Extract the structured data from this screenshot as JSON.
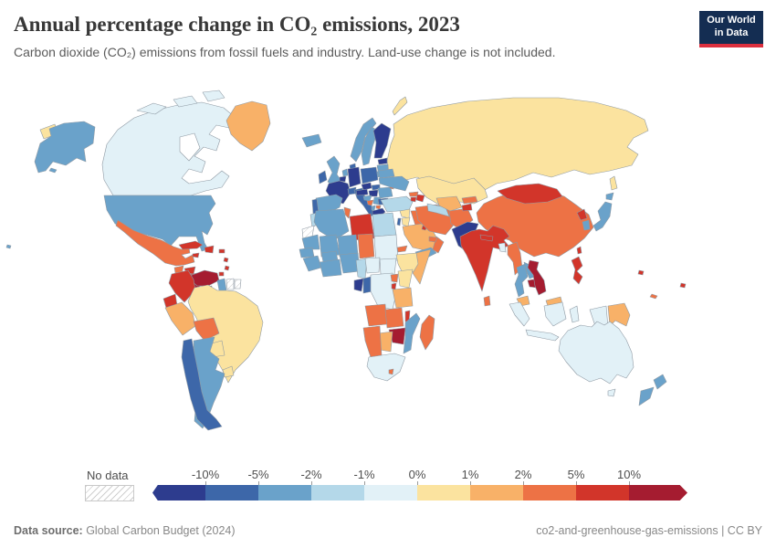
{
  "header": {
    "title": "Annual percentage change in CO₂ emissions, 2023",
    "subtitle": "Carbon dioxide (CO₂) emissions from fossil fuels and industry. Land-use change is not included.",
    "logo": {
      "line1": "Our World",
      "line2": "in Data"
    }
  },
  "legend": {
    "no_data_label": "No data",
    "ticks": [
      "-10%",
      "-5%",
      "-2%",
      "-1%",
      "0%",
      "1%",
      "2%",
      "5%",
      "10%"
    ]
  },
  "footer": {
    "source_label": "Data source:",
    "source_value": " Global Carbon Budget (2024)",
    "right_text": "co2-and-greenhouse-gas-emissions | CC BY"
  },
  "map": {
    "palette": [
      "#2d3c8e",
      "#3d67a9",
      "#6aa2ca",
      "#b4d8e9",
      "#e2f1f7",
      "#fbe39f",
      "#f8b168",
      "#ed7245",
      "#d2352a",
      "#a51c30"
    ],
    "border_color": "#8f9aa4",
    "countries": {
      "russia": 5,
      "kazakhstan": 5,
      "canada": 4,
      "greenland": 6,
      "usa": 2,
      "mexico": 7,
      "guatemala": 7,
      "honduras": 8,
      "nicaragua": 8,
      "costa-rica": 9,
      "panama": 9,
      "cuba": 8,
      "jamaica": 8,
      "hispaniola": 8,
      "puerto-rico": 8,
      "lesser-antilles": 8,
      "trinidad": 8,
      "venezuela": 9,
      "colombia": 8,
      "guyana": 2,
      "suriname": -1,
      "french-guiana": -1,
      "ecuador": 8,
      "peru": 6,
      "brazil": 5,
      "bolivia": 7,
      "paraguay": 5,
      "uruguay": 5,
      "argentina": 2,
      "chile": 1,
      "iceland": 2,
      "norway": 2,
      "sweden": 2,
      "finland": 0,
      "estonia": 0,
      "latvia": 2,
      "lithuania": 2,
      "denmark": 1,
      "united-kingdom": 2,
      "ireland": 1,
      "netherlands": 2,
      "belgium": 0,
      "germany": 0,
      "france": 0,
      "switzerland": 1,
      "spain": 2,
      "portugal": 1,
      "italy": 1,
      "poland": 1,
      "czechia": 0,
      "austria": 0,
      "slovakia": 1,
      "hungary": 0,
      "romania": 2,
      "moldova": 7,
      "ukraine": 2,
      "belarus": 2,
      "croatia": 2,
      "bosnia": 7,
      "serbia": 2,
      "albania": 2,
      "north-macedonia": 7,
      "bulgaria": 1,
      "greece": 0,
      "turkey": 3,
      "georgia": 7,
      "armenia": 8,
      "azerbaijan": 8,
      "syria": 5,
      "israel": 1,
      "jordan": 5,
      "iraq": 7,
      "saudi-arabia": 6,
      "yemen": 2,
      "oman": 7,
      "uae": 7,
      "kuwait": 8,
      "iran": 7,
      "afghanistan": 7,
      "turkmenistan": 3,
      "uzbekistan": 6,
      "kyrgyzstan": 7,
      "tajikistan": 8,
      "pakistan": 0,
      "india": 8,
      "nepal": 8,
      "bangladesh": 4,
      "sri-lanka": 7,
      "myanmar": 7,
      "thailand": 2,
      "laos": 2,
      "cambodia": 9,
      "vietnam": 9,
      "malaysia": 6,
      "philippines": 8,
      "indonesia": 4,
      "papua-new-guinea": 6,
      "solomon-islands": 8,
      "fiji": 8,
      "new-caledonia": 7,
      "china": 7,
      "mongolia": 8,
      "north-korea": 8,
      "south-korea": 2,
      "japan": 2,
      "taiwan": 8,
      "morocco": 3,
      "western-sahara": -1,
      "algeria": 2,
      "tunisia": 7,
      "libya": 8,
      "egypt": 3,
      "mauritania": 2,
      "mali": 2,
      "niger": 2,
      "chad": 7,
      "sudan": 4,
      "eritrea": 7,
      "ethiopia": 5,
      "somalia": 6,
      "senegal": 2,
      "guinea": 2,
      "burkina-faso": 2,
      "ghana-cote-divoire": 2,
      "nigeria": 2,
      "cameroon": 3,
      "central-african-republic": 4,
      "south-sudan": 4,
      "gabon": 0,
      "congo": 1,
      "dr-congo": 4,
      "uganda": 7,
      "kenya": 5,
      "rwanda-burundi": 8,
      "tanzania": 6,
      "angola": 7,
      "zambia": 7,
      "malawi": 8,
      "mozambique": 2,
      "zimbabwe": 9,
      "botswana": 6,
      "namibia": 7,
      "south-africa": 4,
      "lesotho": 7,
      "madagascar": 7,
      "australia": 4,
      "new-zealand": 2
    }
  },
  "chart_data": {
    "type": "choropleth",
    "title": "Annual percentage change in CO₂ emissions, 2023",
    "subtitle": "Carbon dioxide (CO₂) emissions from fossil fuels and industry. Land-use change is not included.",
    "unit": "%",
    "year": "2023",
    "legend_position": "bottom",
    "bins": [
      {
        "range": "< -10%",
        "color": "#2d3c8e",
        "countries": [
          "Finland",
          "Estonia",
          "France",
          "Germany",
          "Belgium",
          "Austria",
          "Czechia",
          "Hungary",
          "Greece",
          "Pakistan",
          "Gabon"
        ]
      },
      {
        "range": "-10% to -5%",
        "color": "#3d67a9",
        "countries": [
          "Ireland",
          "Denmark",
          "Portugal",
          "Switzerland",
          "Italy",
          "Poland",
          "Slovakia",
          "Bulgaria",
          "Israel",
          "Chile",
          "Congo"
        ]
      },
      {
        "range": "-5% to -2%",
        "color": "#6aa2ca",
        "countries": [
          "United States",
          "United Kingdom",
          "Iceland",
          "Norway",
          "Sweden",
          "Spain",
          "Netherlands",
          "Latvia",
          "Lithuania",
          "Ukraine",
          "Belarus",
          "Romania",
          "Croatia",
          "Serbia",
          "Albania",
          "Argentina",
          "Guyana",
          "Japan",
          "South Korea",
          "Thailand",
          "Laos",
          "New Zealand",
          "Yemen",
          "Algeria",
          "Mauritania",
          "Mali",
          "Niger",
          "Senegal",
          "Guinea",
          "Burkina Faso",
          "Ghana",
          "Côte d'Ivoire",
          "Nigeria",
          "Mozambique"
        ]
      },
      {
        "range": "-2% to -1%",
        "color": "#b4d8e9",
        "countries": [
          "Morocco",
          "Egypt",
          "Turkey",
          "Turkmenistan",
          "Cameroon"
        ]
      },
      {
        "range": "-1% to 0%",
        "color": "#e2f1f7",
        "countries": [
          "Canada",
          "Australia",
          "Indonesia",
          "Democratic Republic of Congo",
          "Central African Republic",
          "South Sudan",
          "Sudan",
          "South Africa",
          "Bangladesh"
        ]
      },
      {
        "range": "0% to 1%",
        "color": "#fbe39f",
        "countries": [
          "Russia",
          "Kazakhstan",
          "Brazil",
          "Paraguay",
          "Uruguay",
          "Ethiopia",
          "Kenya",
          "Syria",
          "Jordan"
        ]
      },
      {
        "range": "1% to 2%",
        "color": "#f8b168",
        "countries": [
          "Greenland",
          "Peru",
          "Saudi Arabia",
          "Uzbekistan",
          "Malaysia",
          "Papua New Guinea",
          "Somalia",
          "Tanzania",
          "Botswana"
        ]
      },
      {
        "range": "2% to 5%",
        "color": "#ed7245",
        "countries": [
          "Mexico",
          "Guatemala",
          "Bolivia",
          "Tunisia",
          "Chad",
          "Eritrea",
          "Uganda",
          "Angola",
          "Zambia",
          "Namibia",
          "Lesotho",
          "Madagascar",
          "Iran",
          "Iraq",
          "Afghanistan",
          "Oman",
          "United Arab Emirates",
          "China",
          "Myanmar",
          "Moldova",
          "Bosnia and Herzegovina",
          "North Macedonia",
          "Georgia",
          "Kyrgyzstan",
          "Sri Lanka",
          "New Caledonia"
        ]
      },
      {
        "range": "5% to 10%",
        "color": "#d2352a",
        "countries": [
          "Cuba",
          "Haiti",
          "Dominican Republic",
          "Jamaica",
          "Honduras",
          "Nicaragua",
          "Colombia",
          "Ecuador",
          "Libya",
          "Mongolia",
          "India",
          "Nepal",
          "North Korea",
          "Philippines",
          "Armenia",
          "Azerbaijan",
          "Kuwait",
          "Tajikistan",
          "Malawi",
          "Rwanda",
          "Burundi",
          "Taiwan",
          "Fiji",
          "Solomon Islands"
        ]
      },
      {
        "range": "> 10%",
        "color": "#a51c30",
        "countries": [
          "Costa Rica",
          "Panama",
          "Venezuela",
          "Vietnam",
          "Cambodia",
          "Zimbabwe"
        ]
      },
      {
        "range": "No data",
        "color": "hatch",
        "countries": [
          "Western Sahara",
          "Suriname",
          "French Guiana"
        ]
      }
    ]
  }
}
